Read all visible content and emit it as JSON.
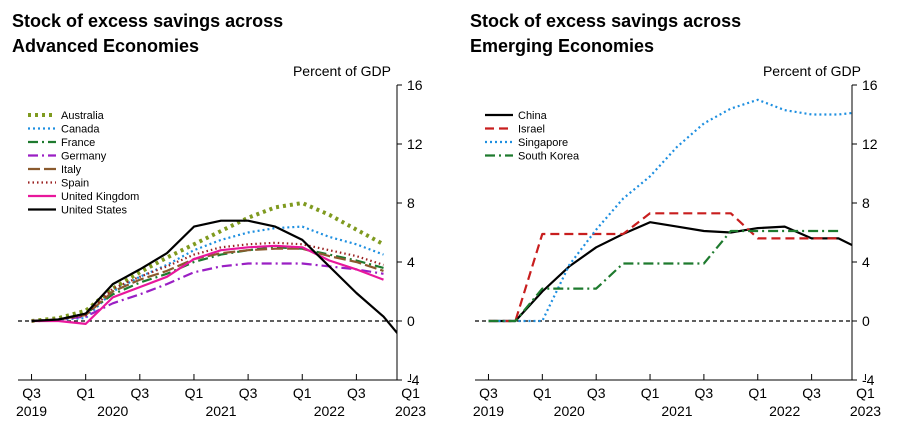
{
  "chart_data": [
    {
      "type": "line",
      "title": "Stock of excess savings across",
      "subtitle": "Advanced Economies",
      "ylabel": "Percent of GDP",
      "ylim": [
        -4,
        16
      ],
      "yticks": [
        "16",
        "12",
        "8",
        "4",
        "0",
        "-4"
      ],
      "xlim": [
        2019.5,
        2023.0
      ],
      "xticks": [
        {
          "x": 2019.625,
          "quarter": "Q3",
          "year": "2019"
        },
        {
          "x": 2020.125,
          "quarter": "Q1",
          "year": ""
        },
        {
          "x": 2020.375,
          "quarter": "",
          "year": "2020"
        },
        {
          "x": 2020.625,
          "quarter": "Q3",
          "year": ""
        },
        {
          "x": 2021.125,
          "quarter": "Q1",
          "year": ""
        },
        {
          "x": 2021.375,
          "quarter": "",
          "year": "2021"
        },
        {
          "x": 2021.625,
          "quarter": "Q3",
          "year": ""
        },
        {
          "x": 2022.125,
          "quarter": "Q1",
          "year": ""
        },
        {
          "x": 2022.375,
          "quarter": "",
          "year": "2022"
        },
        {
          "x": 2022.625,
          "quarter": "Q3",
          "year": ""
        },
        {
          "x": 2023.125,
          "quarter": "Q1",
          "year": "2023"
        }
      ],
      "zero_line": "dashed",
      "legend_position": "top-left",
      "series": [
        {
          "name": "Australia",
          "color": "#7f9a1f",
          "dash": "dotted-thick",
          "x": [
            2019.625,
            2019.875,
            2020.125,
            2020.375,
            2020.625,
            2020.875,
            2021.125,
            2021.375,
            2021.625,
            2021.875,
            2022.125,
            2022.375,
            2022.625,
            2022.875
          ],
          "y": [
            0.0,
            0.2,
            0.7,
            2.2,
            3.3,
            4.3,
            5.2,
            6.1,
            7.0,
            7.7,
            8.0,
            7.2,
            6.2,
            5.2
          ]
        },
        {
          "name": "Canada",
          "color": "#1e8fe0",
          "dash": "dotted",
          "x": [
            2019.625,
            2019.875,
            2020.125,
            2020.375,
            2020.625,
            2020.875,
            2021.125,
            2021.375,
            2021.625,
            2021.875,
            2022.125,
            2022.375,
            2022.625,
            2022.875
          ],
          "y": [
            0.0,
            0.1,
            0.2,
            2.0,
            3.0,
            3.8,
            4.8,
            5.5,
            6.0,
            6.3,
            6.4,
            5.7,
            5.2,
            4.5
          ]
        },
        {
          "name": "France",
          "color": "#1e7a2e",
          "dash": "dashdot",
          "x": [
            2019.625,
            2019.875,
            2020.125,
            2020.375,
            2020.625,
            2020.875,
            2021.125,
            2021.375,
            2021.625,
            2021.875,
            2022.125,
            2022.375,
            2022.625,
            2022.875
          ],
          "y": [
            0.0,
            0.1,
            0.5,
            1.8,
            2.6,
            3.2,
            4.0,
            4.5,
            4.8,
            5.0,
            4.9,
            4.5,
            4.1,
            3.6
          ]
        },
        {
          "name": "Germany",
          "color": "#9a1fc4",
          "dash": "dashdot",
          "x": [
            2019.625,
            2019.875,
            2020.125,
            2020.375,
            2020.625,
            2020.875,
            2021.125,
            2021.375,
            2021.625,
            2021.875,
            2022.125,
            2022.375,
            2022.625,
            2022.875
          ],
          "y": [
            0.0,
            0.1,
            0.3,
            1.2,
            1.8,
            2.5,
            3.3,
            3.7,
            3.9,
            3.9,
            3.9,
            3.7,
            3.5,
            3.2
          ]
        },
        {
          "name": "Italy",
          "color": "#8a5a2e",
          "dash": "longdash",
          "x": [
            2019.625,
            2019.875,
            2020.125,
            2020.375,
            2020.625,
            2020.875,
            2021.125,
            2021.375,
            2021.625,
            2021.875,
            2022.125,
            2022.375,
            2022.625,
            2022.875
          ],
          "y": [
            0.0,
            0.1,
            0.4,
            2.0,
            2.8,
            3.4,
            4.2,
            4.6,
            4.8,
            4.9,
            4.9,
            4.4,
            4.0,
            3.4
          ]
        },
        {
          "name": "Spain",
          "color": "#9a2020",
          "dash": "dotted-fine",
          "x": [
            2019.625,
            2019.875,
            2020.125,
            2020.375,
            2020.625,
            2020.875,
            2021.125,
            2021.375,
            2021.625,
            2021.875,
            2022.125,
            2022.375,
            2022.625,
            2022.875
          ],
          "y": [
            0.0,
            0.1,
            0.4,
            2.2,
            3.0,
            3.7,
            4.5,
            5.0,
            5.2,
            5.3,
            5.2,
            4.8,
            4.4,
            3.8
          ]
        },
        {
          "name": "United Kingdom",
          "color": "#e8179c",
          "dash": "solid",
          "x": [
            2019.625,
            2019.875,
            2020.125,
            2020.375,
            2020.625,
            2020.875,
            2021.125,
            2021.375,
            2021.625,
            2021.875,
            2022.125,
            2022.375,
            2022.625,
            2022.875
          ],
          "y": [
            0.0,
            0.0,
            -0.2,
            1.6,
            2.3,
            3.0,
            4.2,
            4.8,
            5.0,
            5.1,
            5.0,
            4.1,
            3.5,
            2.8
          ]
        },
        {
          "name": "United States",
          "color": "#000000",
          "dash": "solid",
          "x": [
            2019.625,
            2019.875,
            2020.125,
            2020.375,
            2020.625,
            2020.875,
            2021.125,
            2021.375,
            2021.625,
            2021.875,
            2022.125,
            2022.375,
            2022.625,
            2022.875,
            2023.125
          ],
          "y": [
            0.0,
            0.1,
            0.5,
            2.5,
            3.5,
            4.6,
            6.4,
            6.8,
            6.8,
            6.4,
            5.5,
            3.7,
            1.9,
            0.3,
            -1.9
          ]
        }
      ]
    },
    {
      "type": "line",
      "title": "Stock of excess savings across",
      "subtitle": "Emerging Economies",
      "ylabel": "Percent of GDP",
      "ylim": [
        -4,
        16
      ],
      "yticks": [
        "16",
        "12",
        "8",
        "4",
        "0",
        "-4"
      ],
      "xlim": [
        2019.5,
        2023.0
      ],
      "xticks": [
        {
          "x": 2019.625,
          "quarter": "Q3",
          "year": "2019"
        },
        {
          "x": 2020.125,
          "quarter": "Q1",
          "year": ""
        },
        {
          "x": 2020.375,
          "quarter": "",
          "year": "2020"
        },
        {
          "x": 2020.625,
          "quarter": "Q3",
          "year": ""
        },
        {
          "x": 2021.125,
          "quarter": "Q1",
          "year": ""
        },
        {
          "x": 2021.375,
          "quarter": "",
          "year": "2021"
        },
        {
          "x": 2021.625,
          "quarter": "Q3",
          "year": ""
        },
        {
          "x": 2022.125,
          "quarter": "Q1",
          "year": ""
        },
        {
          "x": 2022.375,
          "quarter": "",
          "year": "2022"
        },
        {
          "x": 2022.625,
          "quarter": "Q3",
          "year": ""
        },
        {
          "x": 2023.125,
          "quarter": "Q1",
          "year": "2023"
        }
      ],
      "zero_line": "dashed",
      "legend_position": "top-left",
      "series": [
        {
          "name": "China",
          "color": "#000000",
          "dash": "solid",
          "x": [
            2019.625,
            2019.875,
            2020.125,
            2020.375,
            2020.625,
            2020.875,
            2021.125,
            2021.375,
            2021.625,
            2021.875,
            2022.125,
            2022.375,
            2022.625,
            2022.875,
            2023.125
          ],
          "y": [
            0.0,
            0.0,
            2.0,
            3.7,
            5.0,
            5.9,
            6.7,
            6.4,
            6.1,
            6.0,
            6.3,
            6.4,
            5.6,
            5.6,
            4.7
          ]
        },
        {
          "name": "Israel",
          "color": "#c81e1e",
          "dash": "dashed",
          "x": [
            2019.625,
            2019.875,
            2020.125,
            2020.375,
            2020.625,
            2020.875,
            2021.125,
            2021.375,
            2021.625,
            2021.875,
            2022.125,
            2022.375,
            2022.625,
            2022.875
          ],
          "y": [
            0.0,
            0.0,
            5.9,
            5.9,
            5.9,
            5.9,
            7.3,
            7.3,
            7.3,
            7.3,
            5.6,
            5.6,
            5.6,
            5.6
          ]
        },
        {
          "name": "Singapore",
          "color": "#1e8fe0",
          "dash": "dotted",
          "x": [
            2019.625,
            2019.875,
            2020.125,
            2020.375,
            2020.625,
            2020.875,
            2021.125,
            2021.375,
            2021.625,
            2021.875,
            2022.125,
            2022.375,
            2022.625,
            2022.875,
            2023.0
          ],
          "y": [
            0.0,
            0.0,
            0.0,
            3.8,
            6.2,
            8.3,
            9.8,
            11.8,
            13.4,
            14.4,
            15.0,
            14.3,
            14.0,
            14.0,
            14.1
          ]
        },
        {
          "name": "South Korea",
          "color": "#1e7a2e",
          "dash": "dashdot",
          "x": [
            2019.625,
            2019.875,
            2020.125,
            2020.375,
            2020.625,
            2020.875,
            2021.125,
            2021.375,
            2021.625,
            2021.875,
            2022.125,
            2022.375,
            2022.625,
            2022.875
          ],
          "y": [
            0.0,
            0.0,
            2.2,
            2.2,
            2.2,
            3.9,
            3.9,
            3.9,
            3.9,
            6.1,
            6.1,
            6.1,
            6.1,
            6.1
          ]
        }
      ]
    }
  ]
}
